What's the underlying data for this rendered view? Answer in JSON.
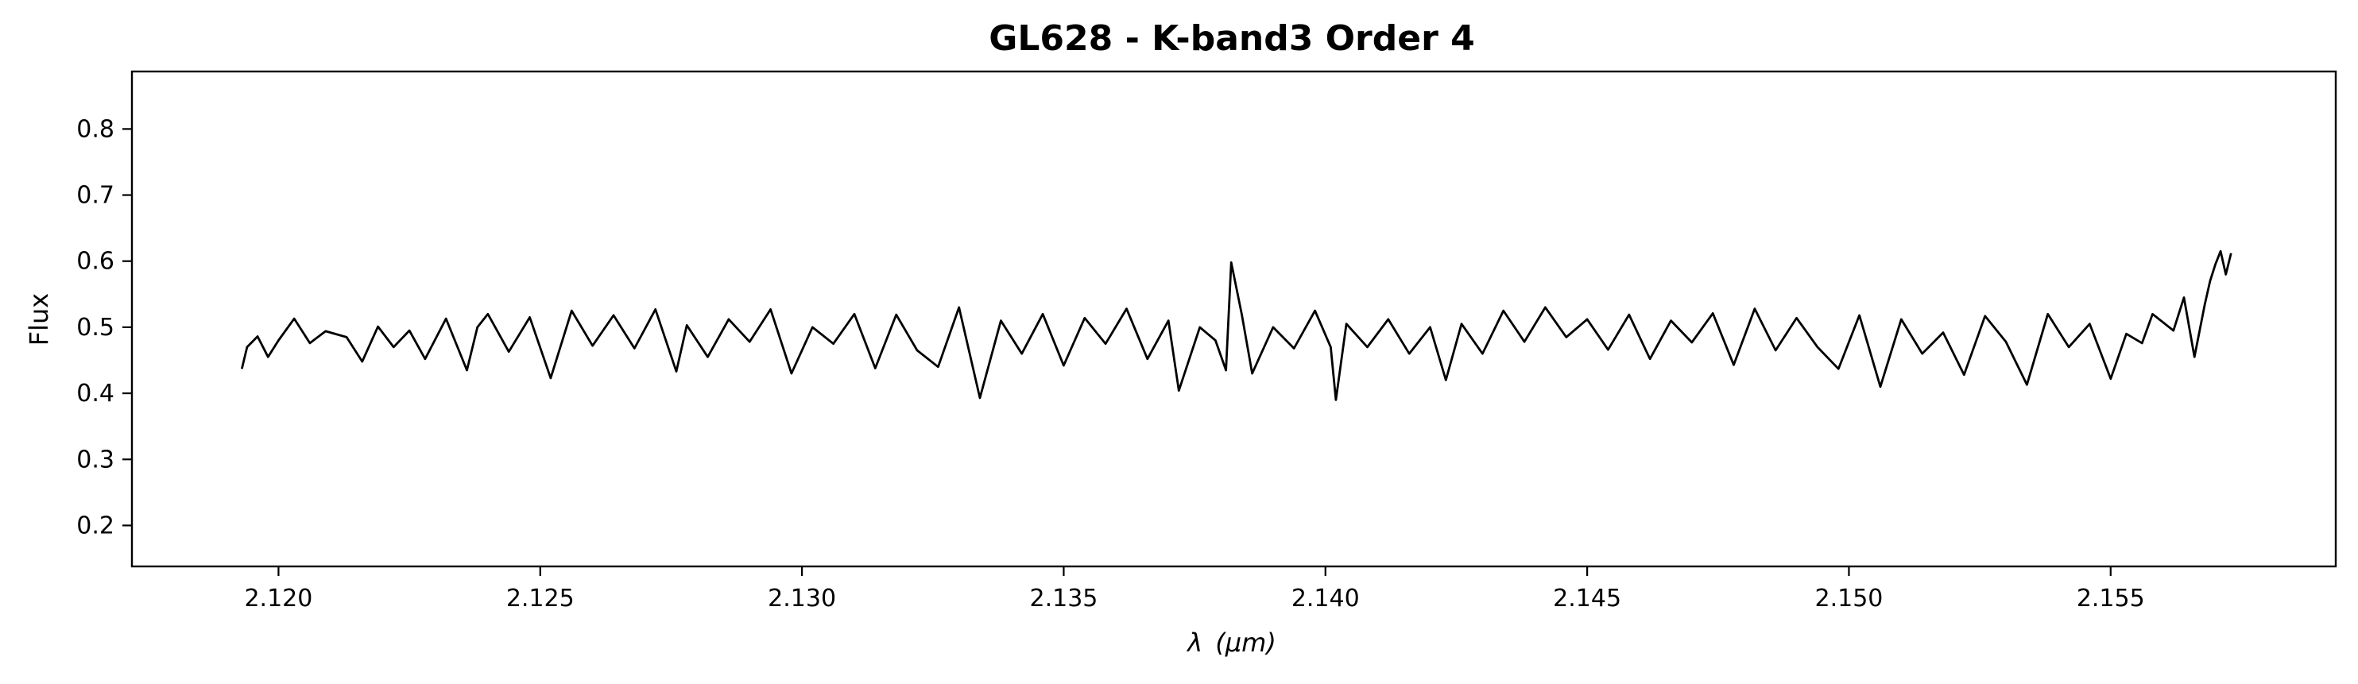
{
  "chart_data": {
    "type": "line",
    "title": "GL628 - K-band3 Order 4",
    "xlabel_symbol": "λ",
    "xlabel_unit": "(μm)",
    "ylabel": "Flux",
    "xlim": [
      2.1172,
      2.1593
    ],
    "ylim": [
      0.138,
      0.887
    ],
    "x_ticks": [
      2.12,
      2.125,
      2.13,
      2.135,
      2.14,
      2.145,
      2.15,
      2.155
    ],
    "x_tick_labels": [
      "2.120",
      "2.125",
      "2.130",
      "2.135",
      "2.140",
      "2.145",
      "2.150",
      "2.155"
    ],
    "y_ticks": [
      0.2,
      0.3,
      0.4,
      0.5,
      0.6,
      0.7,
      0.8
    ],
    "y_tick_labels": [
      "0.2",
      "0.3",
      "0.4",
      "0.5",
      "0.6",
      "0.7",
      "0.8"
    ],
    "grid": false,
    "legend": "none",
    "line_color": "#000000",
    "series": [
      {
        "x": [
          2.1193,
          2.1194,
          2.1196,
          2.1198,
          2.12,
          2.1203,
          2.1206,
          2.1209,
          2.1213,
          2.1216,
          2.1219,
          2.1222,
          2.1225,
          2.1228,
          2.1232,
          2.1236,
          2.1238,
          2.124,
          2.1244,
          2.1248,
          2.1252,
          2.1256,
          2.126,
          2.1264,
          2.1268,
          2.1272,
          2.1276,
          2.1278,
          2.1282,
          2.1286,
          2.129,
          2.1294,
          2.1298,
          2.1302,
          2.1306,
          2.131,
          2.1314,
          2.1318,
          2.1322,
          2.1326,
          2.133,
          2.1334,
          2.1338,
          2.1342,
          2.1346,
          2.135,
          2.1354,
          2.1358,
          2.1362,
          2.1366,
          2.137,
          2.1372,
          2.1376,
          2.1379,
          2.1381,
          2.1382,
          2.1384,
          2.1386,
          2.139,
          2.1394,
          2.1398,
          2.1401,
          2.1402,
          2.1404,
          2.1408,
          2.1412,
          2.1416,
          2.142,
          2.1423,
          2.1426,
          2.143,
          2.1434,
          2.1438,
          2.1442,
          2.1446,
          2.145,
          2.1454,
          2.1458,
          2.1462,
          2.1466,
          2.147,
          2.1474,
          2.1478,
          2.1482,
          2.1486,
          2.149,
          2.1494,
          2.1498,
          2.1502,
          2.1506,
          2.151,
          2.1514,
          2.1518,
          2.1522,
          2.1526,
          2.153,
          2.1534,
          2.1538,
          2.1542,
          2.1546,
          2.155,
          2.1553,
          2.1556,
          2.1558,
          2.1562,
          2.1564,
          2.1566,
          2.1568,
          2.1569,
          2.157,
          2.1571,
          2.1572,
          2.1573
        ],
        "y": [
          0.437,
          0.47,
          0.486,
          0.455,
          0.48,
          0.513,
          0.476,
          0.494,
          0.485,
          0.448,
          0.501,
          0.47,
          0.495,
          0.452,
          0.513,
          0.435,
          0.5,
          0.52,
          0.463,
          0.515,
          0.423,
          0.525,
          0.472,
          0.518,
          0.468,
          0.527,
          0.433,
          0.503,
          0.455,
          0.512,
          0.478,
          0.527,
          0.43,
          0.5,
          0.475,
          0.52,
          0.438,
          0.519,
          0.465,
          0.44,
          0.53,
          0.393,
          0.51,
          0.46,
          0.52,
          0.442,
          0.514,
          0.475,
          0.528,
          0.452,
          0.51,
          0.404,
          0.5,
          0.48,
          0.435,
          0.598,
          0.52,
          0.43,
          0.5,
          0.468,
          0.525,
          0.47,
          0.39,
          0.505,
          0.47,
          0.512,
          0.46,
          0.5,
          0.42,
          0.505,
          0.46,
          0.525,
          0.478,
          0.53,
          0.485,
          0.512,
          0.466,
          0.519,
          0.452,
          0.51,
          0.477,
          0.521,
          0.443,
          0.528,
          0.465,
          0.514,
          0.47,
          0.437,
          0.518,
          0.41,
          0.512,
          0.46,
          0.492,
          0.428,
          0.517,
          0.478,
          0.413,
          0.52,
          0.47,
          0.505,
          0.422,
          0.49,
          0.476,
          0.52,
          0.495,
          0.545,
          0.455,
          0.535,
          0.57,
          0.595,
          0.615,
          0.58,
          0.612
        ]
      }
    ]
  }
}
